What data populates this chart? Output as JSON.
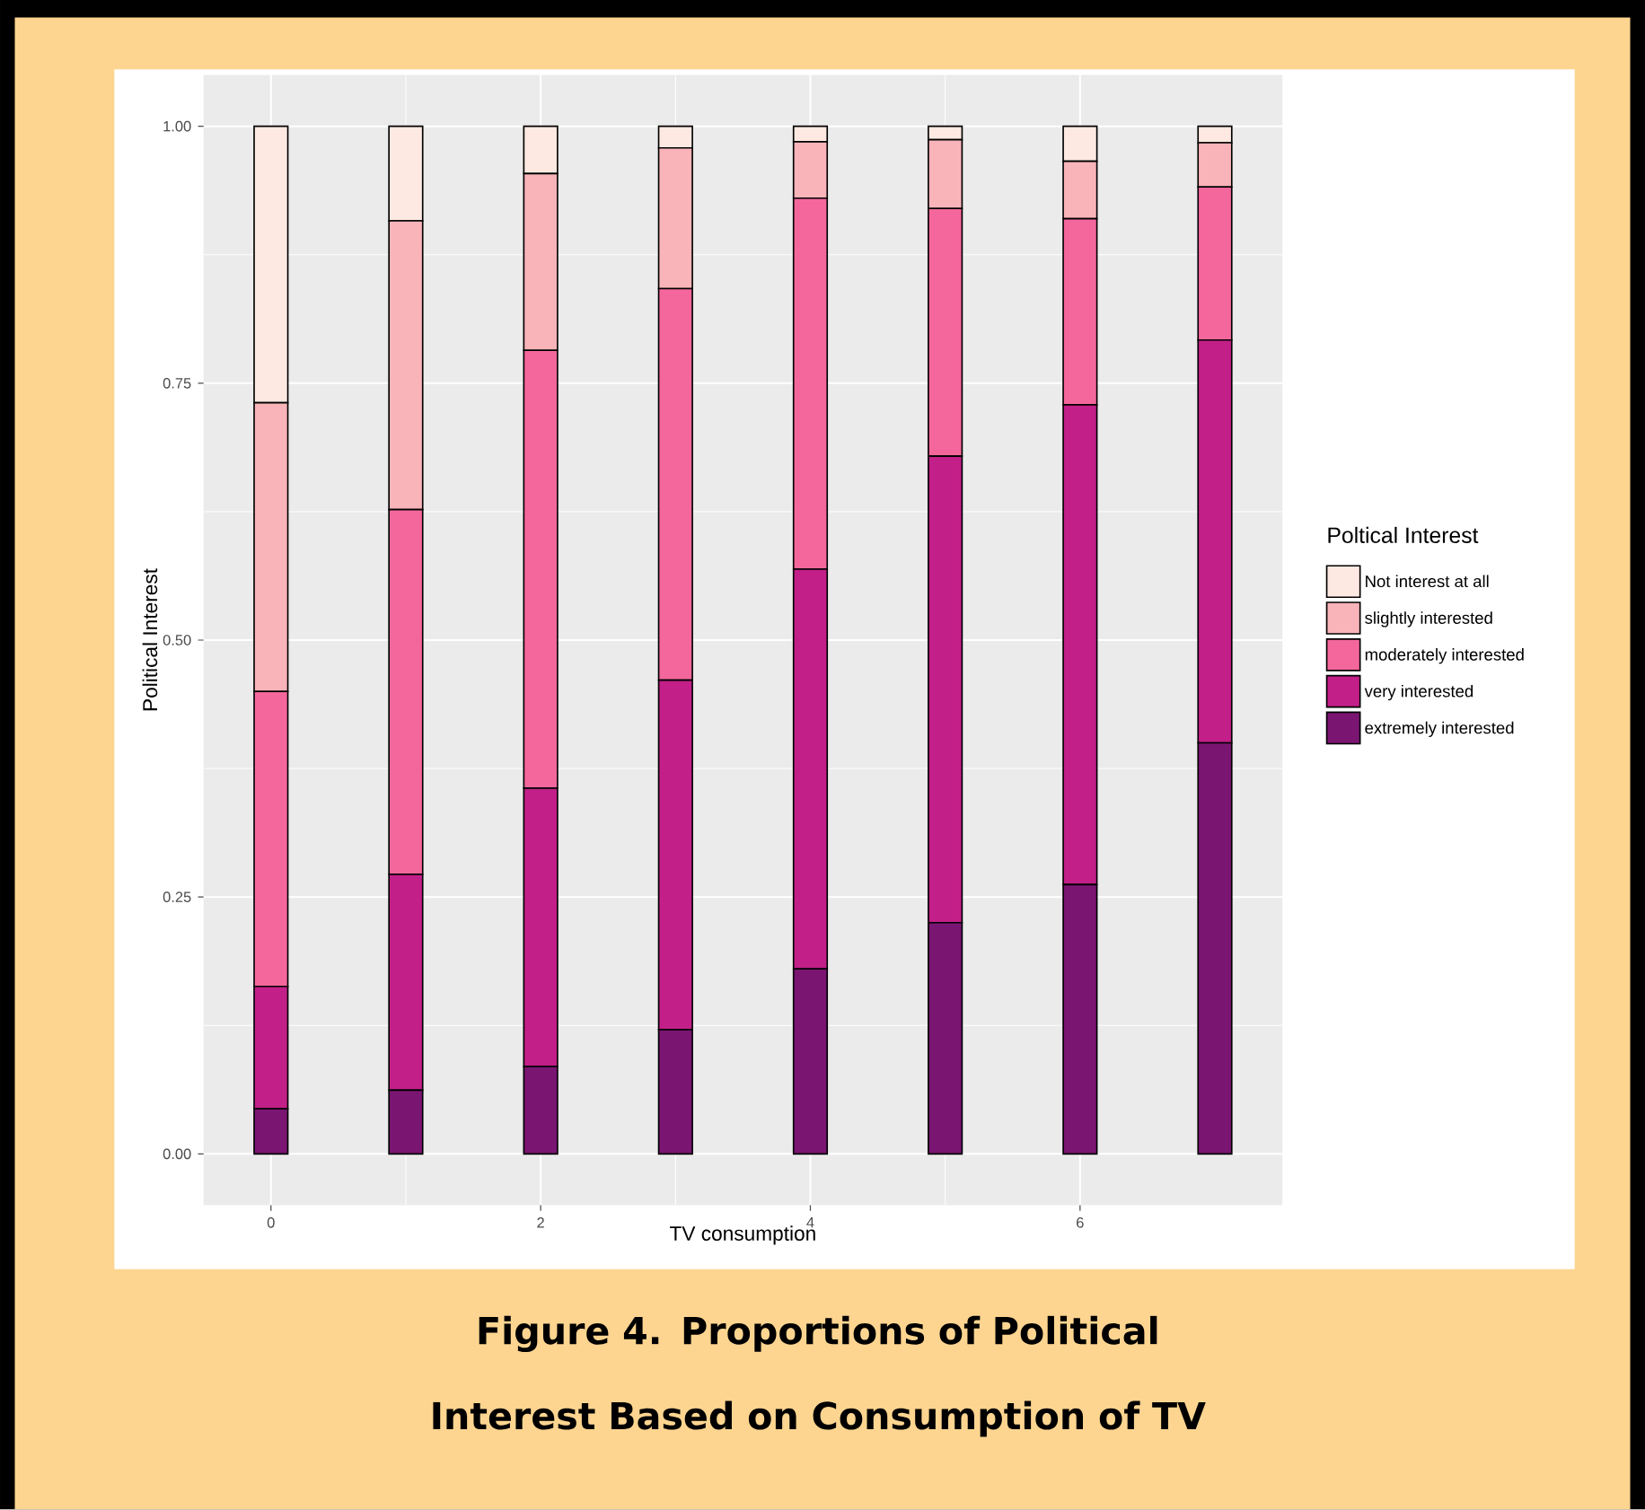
{
  "chart_data": {
    "type": "bar",
    "stacked": true,
    "title": "Figure 4. Proportions of Political Interest Based on Consumption of TV",
    "xlabel": "TV consumption",
    "ylabel": "Political Interest",
    "legend_title": "Poltical Interest",
    "legend": "right",
    "grid": true,
    "x": [
      0,
      1,
      2,
      3,
      4,
      5,
      6,
      7
    ],
    "xlim": [
      -0.5,
      7.5
    ],
    "xticks": [
      0,
      2,
      4,
      6
    ],
    "ylim": [
      -0.05,
      1.05
    ],
    "yticks": [
      {
        "value": 0,
        "label": "0.00"
      },
      {
        "value": 0.25,
        "label": "0.25"
      },
      {
        "value": 0.5,
        "label": "0.50"
      },
      {
        "value": 0.75,
        "label": "0.75"
      },
      {
        "value": 1,
        "label": "1.00"
      }
    ],
    "series": [
      {
        "name": "extremely interested",
        "color": "#7a1572",
        "values": [
          0.044,
          0.062,
          0.085,
          0.121,
          0.18,
          0.225,
          0.262,
          0.4
        ]
      },
      {
        "name": "very interested",
        "color": "#c21f88",
        "values": [
          0.119,
          0.21,
          0.271,
          0.34,
          0.389,
          0.454,
          0.467,
          0.392
        ]
      },
      {
        "name": "moderately interested",
        "color": "#f4679c",
        "values": [
          0.287,
          0.355,
          0.426,
          0.381,
          0.361,
          0.241,
          0.181,
          0.149
        ]
      },
      {
        "name": "slightly interested",
        "color": "#f9b4b9",
        "values": [
          0.281,
          0.281,
          0.172,
          0.137,
          0.055,
          0.067,
          0.056,
          0.043
        ]
      },
      {
        "name": "Not interest at all",
        "color": "#fde9e1",
        "values": [
          0.269,
          0.092,
          0.046,
          0.021,
          0.015,
          0.013,
          0.034,
          0.016
        ]
      }
    ]
  }
}
